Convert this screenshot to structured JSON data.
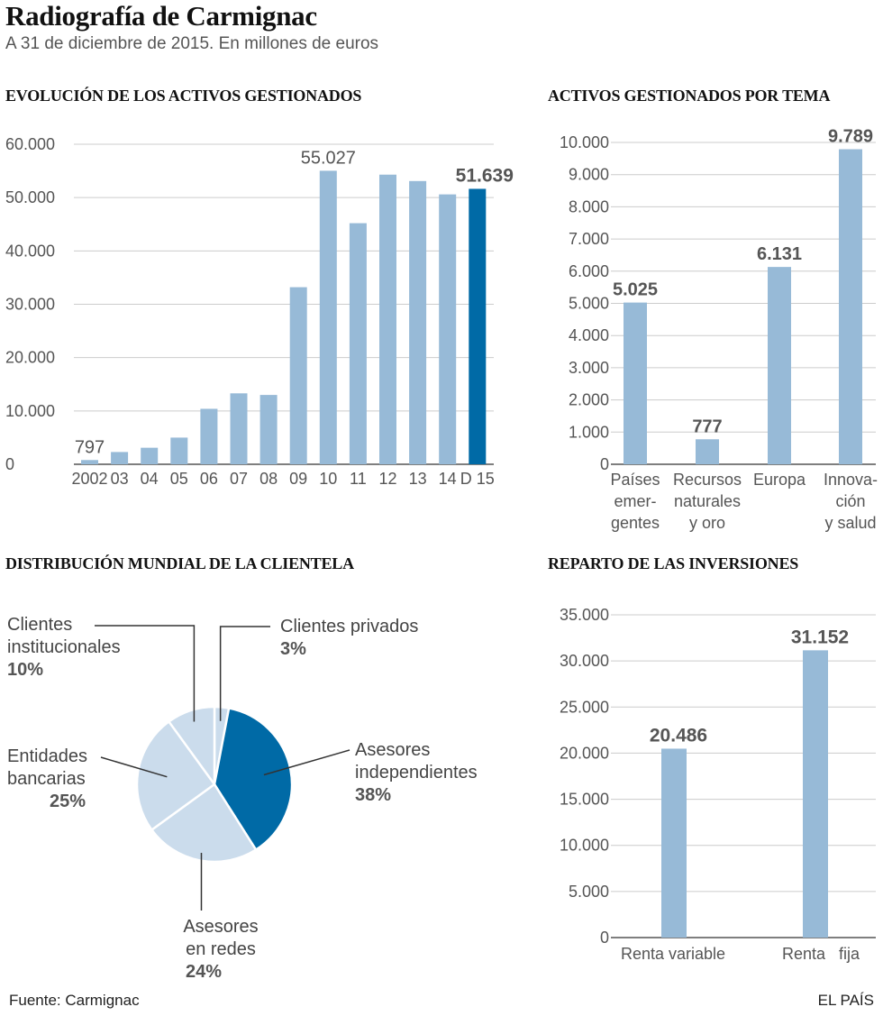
{
  "header": {
    "title": "Radiografía de Carmignac",
    "subtitle": "A 31 de diciembre de 2015. En millones de euros"
  },
  "sections": {
    "evolution": "EVOLUCIÓN DE LOS ACTIVOS GESTIONADOS",
    "theme": "ACTIVOS GESTIONADOS POR TEMA",
    "distribution": "DISTRIBUCIÓN MUNDIAL DE LA CLIENTELA",
    "investments": "REPARTO DE LAS INVERSIONES"
  },
  "footer": {
    "source": "Fuente: Carmignac",
    "brand": "EL PAÍS"
  },
  "colors": {
    "light_bar": "#97bad7",
    "dark_bar": "#006aa6",
    "pie_light": "#cbdcec",
    "axis": "#555555",
    "grid": "#cccccc"
  },
  "chart_data": [
    {
      "id": "evolution",
      "type": "bar",
      "title": "EVOLUCIÓN DE LOS ACTIVOS GESTIONADOS",
      "categories": [
        "2002",
        "03",
        "04",
        "05",
        "06",
        "07",
        "08",
        "09",
        "10",
        "11",
        "12",
        "13",
        "14",
        "D 15"
      ],
      "values": [
        797,
        2300,
        3100,
        5000,
        10400,
        13300,
        13000,
        33200,
        55027,
        45200,
        54300,
        53100,
        50600,
        51639
      ],
      "highlight_index": 13,
      "labels": [
        {
          "index": 0,
          "text": "797",
          "bold": false
        },
        {
          "index": 8,
          "text": "55.027",
          "bold": false
        },
        {
          "index": 13,
          "text": "51.639",
          "bold": true
        }
      ],
      "yticks": [
        0,
        10000,
        20000,
        30000,
        40000,
        50000,
        60000
      ],
      "ytick_labels": [
        "0",
        "10.000",
        "20.000",
        "30.000",
        "40.000",
        "50.000",
        "60.000"
      ],
      "ylim": [
        0,
        60000
      ]
    },
    {
      "id": "theme",
      "type": "bar",
      "title": "ACTIVOS GESTIONADOS POR TEMA",
      "categories": [
        [
          "Países",
          "emer-",
          "gentes"
        ],
        [
          "Recursos",
          "naturales",
          "y oro"
        ],
        [
          "Europa"
        ],
        [
          "Innova-",
          "ción",
          "y salud"
        ]
      ],
      "values": [
        5025,
        777,
        6131,
        9789
      ],
      "value_labels": [
        "5.025",
        "777",
        "6.131",
        "9.789"
      ],
      "yticks": [
        0,
        1000,
        2000,
        3000,
        4000,
        5000,
        6000,
        7000,
        8000,
        9000,
        10000
      ],
      "ytick_labels": [
        "0",
        "1.000",
        "2.000",
        "3.000",
        "4.000",
        "5.000",
        "6.000",
        "7.000",
        "8.000",
        "9.000",
        "10.000"
      ],
      "ylim": [
        0,
        10000
      ]
    },
    {
      "id": "distribution",
      "type": "pie",
      "title": "DISTRIBUCIÓN MUNDIAL DE LA CLIENTELA",
      "slices": [
        {
          "label": [
            "Clientes privados"
          ],
          "value": 3,
          "pct": "3%",
          "color": "#cbdcec"
        },
        {
          "label": [
            "Asesores",
            "independientes"
          ],
          "value": 38,
          "pct": "38%",
          "color": "#006aa6"
        },
        {
          "label": [
            "Asesores",
            "en redes"
          ],
          "value": 24,
          "pct": "24%",
          "color": "#cbdcec"
        },
        {
          "label": [
            "Entidades",
            "bancarias"
          ],
          "value": 25,
          "pct": "25%",
          "color": "#cbdcec"
        },
        {
          "label": [
            "Clientes",
            "institucionales"
          ],
          "value": 10,
          "pct": "10%",
          "color": "#cbdcec"
        }
      ]
    },
    {
      "id": "investments",
      "type": "bar",
      "title": "REPARTO DE LAS INVERSIONES",
      "categories": [
        "Renta variable",
        "Renta   fija"
      ],
      "values": [
        20486,
        31152
      ],
      "value_labels": [
        "20.486",
        "31.152"
      ],
      "yticks": [
        0,
        5000,
        10000,
        15000,
        20000,
        25000,
        30000,
        35000
      ],
      "ytick_labels": [
        "0",
        "5.000",
        "10.000",
        "15.000",
        "20.000",
        "25.000",
        "30.000",
        "35.000"
      ],
      "ylim": [
        0,
        35000
      ]
    }
  ]
}
